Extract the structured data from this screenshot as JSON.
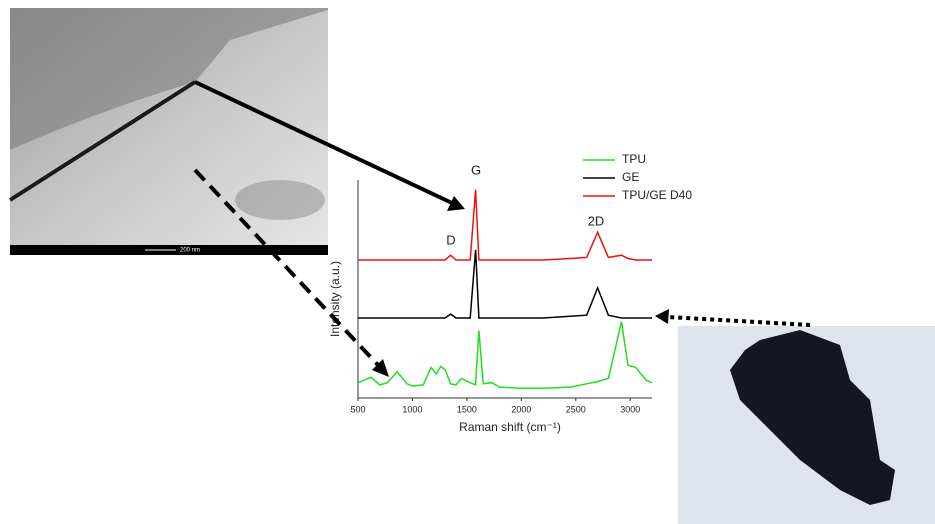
{
  "tem_scale_bar": "200 nm",
  "chart_data": {
    "type": "line",
    "x_label": "Raman shift (cm⁻¹)",
    "y_label": "Intensity (a.u.)",
    "annotations": [
      "G",
      "D",
      "2D"
    ],
    "x": [
      500,
      620,
      700,
      770,
      860,
      950,
      1000,
      1100,
      1170,
      1220,
      1260,
      1300,
      1350,
      1400,
      1450,
      1530,
      1580,
      1610,
      1650,
      1730,
      1800,
      2000,
      2200,
      2450,
      2600,
      2700,
      2800,
      2920,
      2980,
      3050,
      3150,
      3200
    ],
    "xlim": [
      500,
      3200
    ],
    "xticks": [
      500,
      1000,
      1500,
      2000,
      2500,
      3000
    ],
    "ylim": [
      0,
      100
    ],
    "legend": "top-right",
    "series": [
      {
        "name": "TPU",
        "color": "#22dd22",
        "values": [
          7,
          9.5,
          6,
          7,
          12,
          6.5,
          5.5,
          6,
          14,
          11,
          14.5,
          13,
          6.5,
          6,
          9,
          7,
          6,
          31,
          6.5,
          7,
          5,
          4.5,
          4.5,
          5,
          6.5,
          7.5,
          9,
          35,
          15,
          14,
          8,
          7
        ]
      },
      {
        "name": "GE",
        "color": "#000000",
        "values": [
          36.7,
          36.7,
          36.7,
          36.7,
          36.7,
          36.7,
          36.7,
          36.7,
          36.7,
          36.7,
          36.7,
          36.7,
          38.5,
          36.7,
          36.7,
          36.7,
          68,
          36.7,
          36.7,
          36.7,
          36.7,
          36.7,
          36.7,
          37.5,
          38,
          50.5,
          38,
          36.7,
          36.7,
          36.7,
          36.7,
          36.7
        ]
      },
      {
        "name": "TPU/GE D40",
        "color": "#ee1111",
        "values": [
          63.3,
          63.3,
          63.3,
          63.3,
          63.3,
          63.3,
          63.3,
          63.3,
          63.3,
          63.3,
          63.3,
          63.3,
          65.5,
          63.3,
          63.3,
          63.3,
          95.5,
          63.3,
          63.3,
          63.3,
          63.3,
          63.3,
          63.3,
          64,
          64.5,
          76,
          64.5,
          65.5,
          64,
          63.3,
          63.3,
          63.3
        ]
      }
    ]
  }
}
